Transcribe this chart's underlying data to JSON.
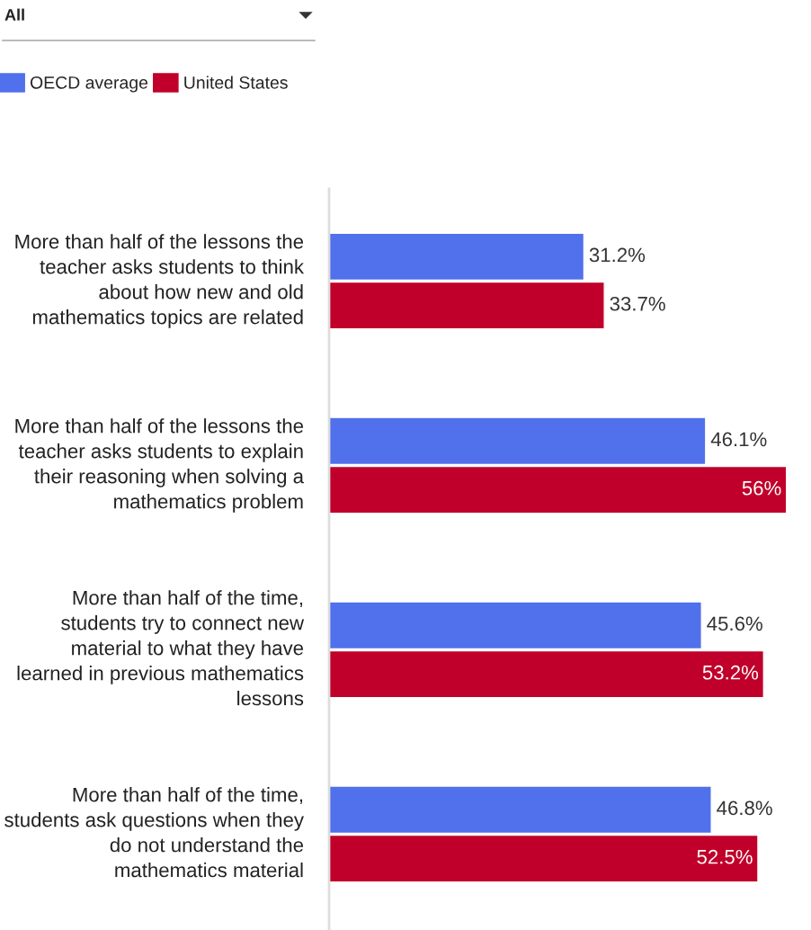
{
  "chart_data": {
    "type": "bar",
    "orientation": "horizontal",
    "categories": [
      "More than half of the lessons the teacher asks students to think about how new and old mathematics topics are related",
      "More than half of the lessons the teacher asks students to explain their reasoning when solving a mathematics problem",
      "More than half of the time, students try to connect new material to what they have learned in previous mathematics lessons",
      "More than half of the time, students ask questions when they do not understand the mathematics material"
    ],
    "series": [
      {
        "name": "OECD average",
        "color": "#5170eb",
        "values": [
          31.2,
          46.1,
          45.6,
          46.8
        ],
        "value_labels": [
          "31.2%",
          "46.1%",
          "45.6%",
          "46.8%"
        ]
      },
      {
        "name": "United States",
        "color": "#c0002a",
        "values": [
          33.7,
          56,
          53.2,
          52.5
        ],
        "value_labels": [
          "33.7%",
          "56%",
          "53.2%",
          "52.5%"
        ]
      }
    ],
    "legend": "top left",
    "annotations": [
      "All"
    ]
  }
}
